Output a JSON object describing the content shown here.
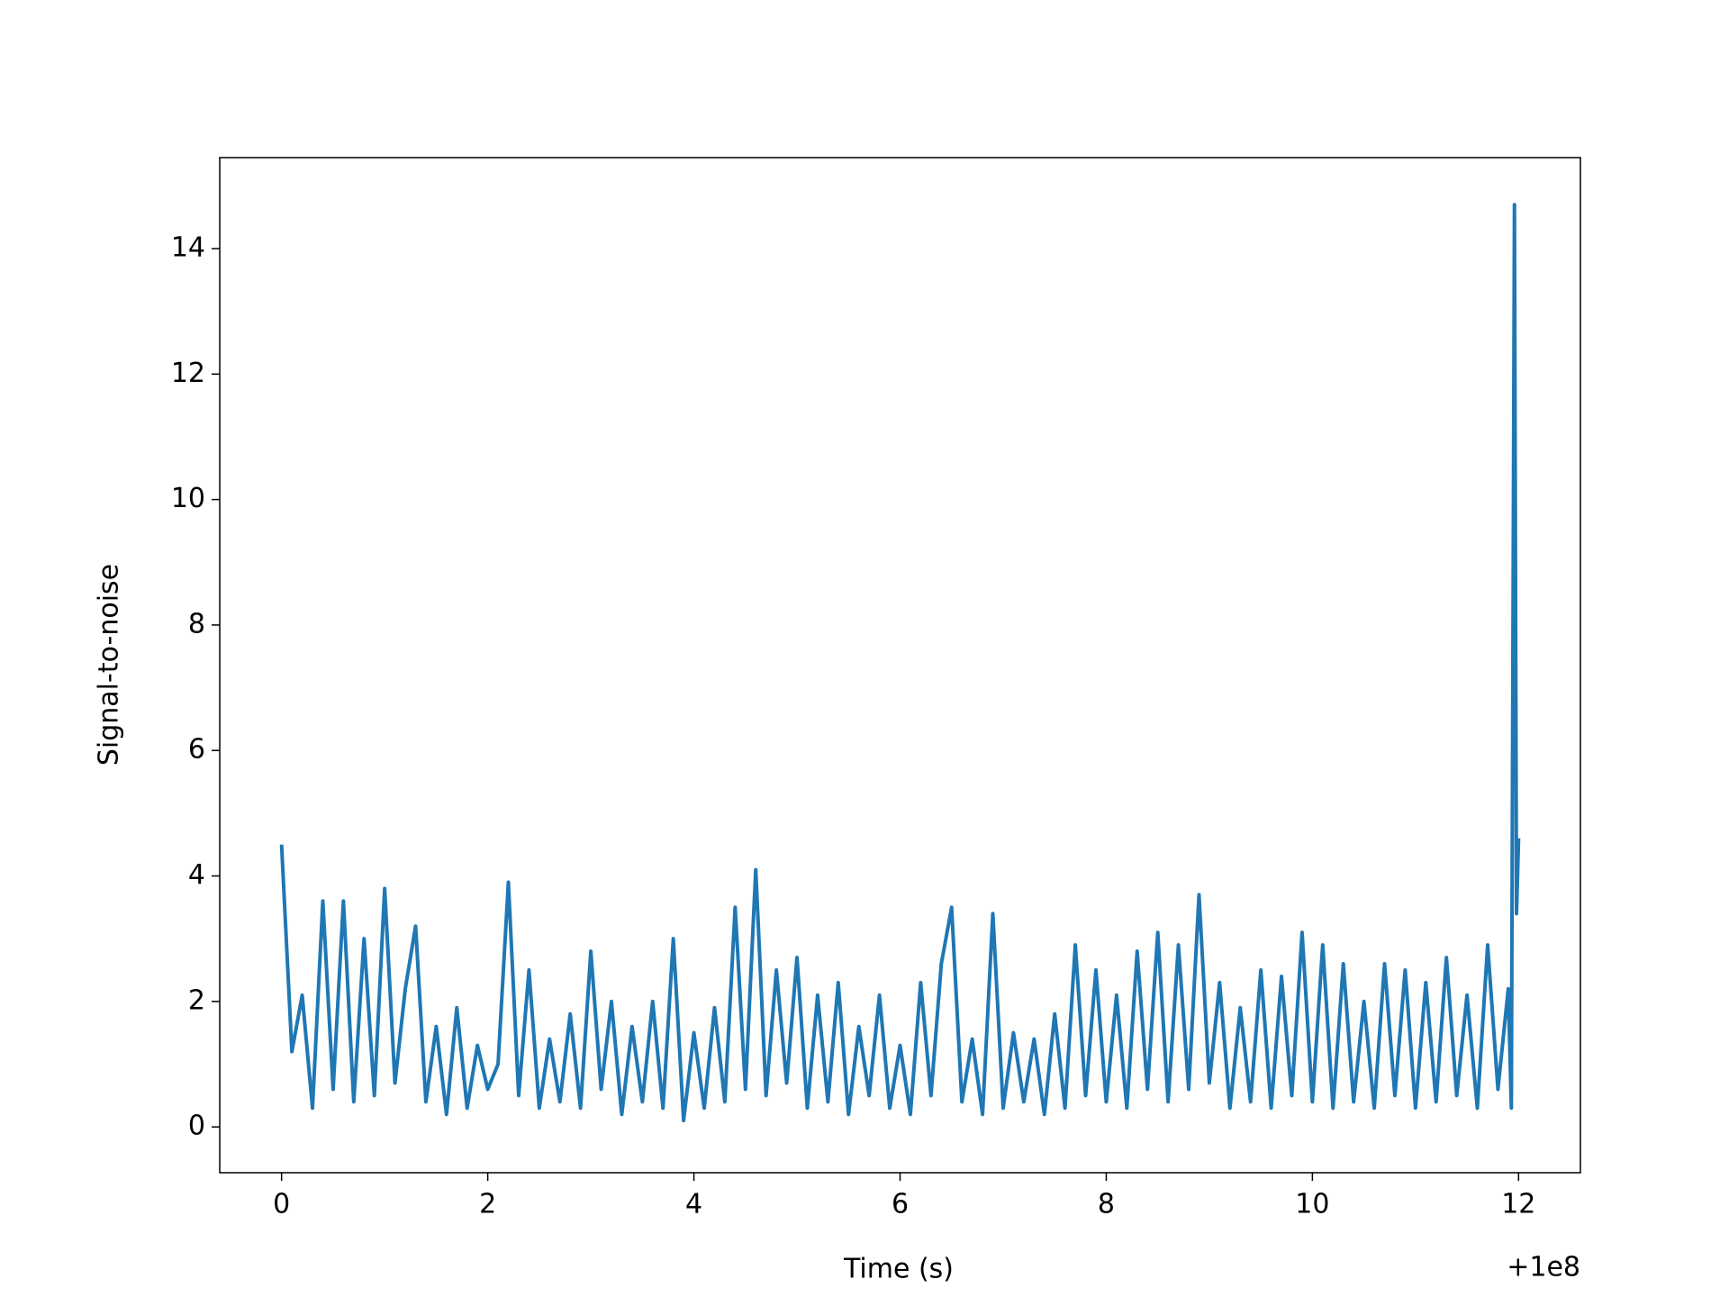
{
  "chart_data": {
    "type": "line",
    "x_label": "Time (s)",
    "y_label": "Signal-to-noise",
    "x_offset_label": "+1e8",
    "xlim": [
      -0.6,
      12.6
    ],
    "xticks": [
      0,
      2,
      4,
      6,
      8,
      10,
      12
    ],
    "ylim": [
      -0.73,
      15.45
    ],
    "yticks": [
      0,
      2,
      4,
      6,
      8,
      10,
      12,
      14
    ],
    "grid": false,
    "series": [
      {
        "color": "#1f77b4",
        "x": [
          0,
          0.1,
          0.2,
          0.3,
          0.4,
          0.5,
          0.6,
          0.7,
          0.8,
          0.9,
          1.0,
          1.1,
          1.2,
          1.3,
          1.4,
          1.5,
          1.6,
          1.7,
          1.8,
          1.9,
          2.0,
          2.1,
          2.2,
          2.3,
          2.4,
          2.5,
          2.6,
          2.7,
          2.8,
          2.9,
          3.0,
          3.1,
          3.2,
          3.3,
          3.4,
          3.5,
          3.6,
          3.7,
          3.8,
          3.9,
          4.0,
          4.1,
          4.2,
          4.3,
          4.4,
          4.5,
          4.6,
          4.7,
          4.8,
          4.9,
          5.0,
          5.1,
          5.2,
          5.3,
          5.4,
          5.5,
          5.6,
          5.7,
          5.8,
          5.9,
          6.0,
          6.1,
          6.2,
          6.3,
          6.4,
          6.5,
          6.6,
          6.7,
          6.8,
          6.9,
          7.0,
          7.1,
          7.2,
          7.3,
          7.4,
          7.5,
          7.6,
          7.7,
          7.8,
          7.9,
          8.0,
          8.1,
          8.2,
          8.3,
          8.4,
          8.5,
          8.6,
          8.7,
          8.8,
          8.9,
          9.0,
          9.1,
          9.2,
          9.3,
          9.4,
          9.5,
          9.6,
          9.7,
          9.8,
          9.9,
          10.0,
          10.1,
          10.2,
          10.3,
          10.4,
          10.5,
          10.6,
          10.7,
          10.8,
          10.9,
          11.0,
          11.1,
          11.2,
          11.3,
          11.4,
          11.5,
          11.6,
          11.7,
          11.8,
          11.9,
          11.93,
          11.96,
          11.98,
          12.0
        ],
        "values": [
          4.5,
          1.2,
          2.1,
          0.3,
          3.6,
          0.6,
          3.6,
          0.4,
          3.0,
          0.5,
          3.8,
          0.7,
          2.2,
          3.2,
          0.4,
          1.6,
          0.2,
          1.9,
          0.3,
          1.3,
          0.6,
          1.0,
          3.9,
          0.5,
          2.5,
          0.3,
          1.4,
          0.4,
          1.8,
          0.3,
          2.8,
          0.6,
          2.0,
          0.2,
          1.6,
          0.4,
          2.0,
          0.3,
          3.0,
          0.1,
          1.5,
          0.3,
          1.9,
          0.4,
          3.5,
          0.6,
          4.1,
          0.5,
          2.5,
          0.7,
          2.7,
          0.3,
          2.1,
          0.4,
          2.3,
          0.2,
          1.6,
          0.5,
          2.1,
          0.3,
          1.3,
          0.2,
          2.3,
          0.5,
          2.6,
          3.5,
          0.4,
          1.4,
          0.2,
          3.4,
          0.3,
          1.5,
          0.4,
          1.4,
          0.2,
          1.8,
          0.3,
          2.9,
          0.5,
          2.5,
          0.4,
          2.1,
          0.3,
          2.8,
          0.6,
          3.1,
          0.4,
          2.9,
          0.6,
          3.7,
          0.7,
          2.3,
          0.3,
          1.9,
          0.4,
          2.5,
          0.3,
          2.4,
          0.5,
          3.1,
          0.4,
          2.9,
          0.3,
          2.6,
          0.4,
          2.0,
          0.3,
          2.6,
          0.5,
          2.5,
          0.3,
          2.3,
          0.4,
          2.7,
          0.5,
          2.1,
          0.3,
          2.9,
          0.6,
          2.2,
          0.3,
          14.7,
          3.4,
          4.6
        ]
      }
    ]
  }
}
